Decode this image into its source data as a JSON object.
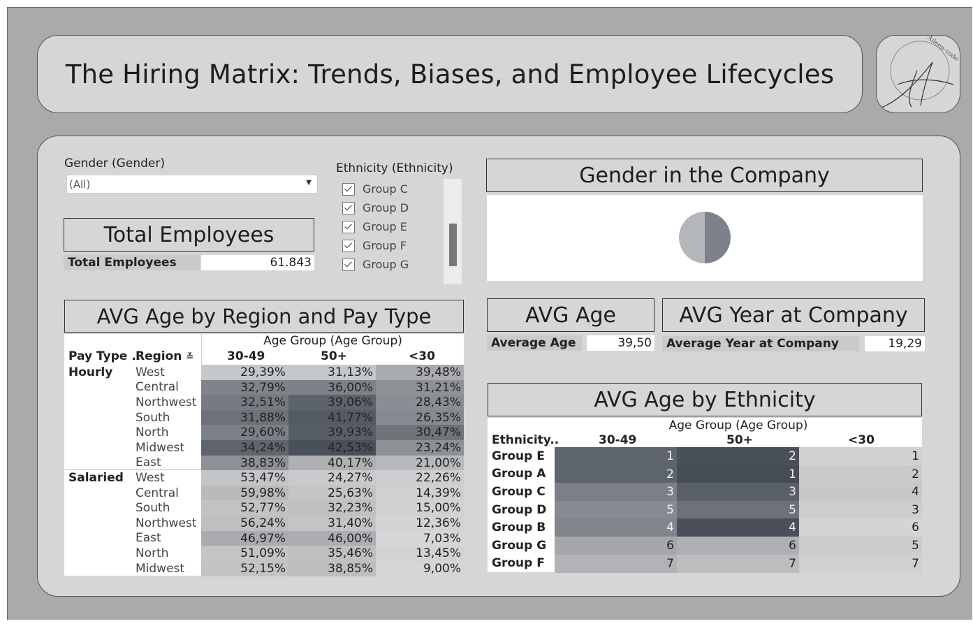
{
  "title": "The Hiring Matrix: Trends, Biases, and Employee Lifecycles",
  "logo": {
    "text": "Aileen-code",
    "initial": "A"
  },
  "filters": {
    "gender": {
      "title": "Gender (Gender)",
      "value": "(All)"
    },
    "ethnicity": {
      "title": "Ethnicity (Ethnicity)",
      "items": [
        "Group C",
        "Group D",
        "Group E",
        "Group F",
        "Group G"
      ],
      "checked": [
        true,
        true,
        true,
        true,
        true
      ]
    }
  },
  "total_employees": {
    "header": "Total Employees",
    "label": "Total Employees",
    "value": "61.843"
  },
  "gender_chart": {
    "header": "Gender in the Company",
    "colors": [
      "#b3b7bb",
      "#7c818c"
    ],
    "slices": [
      0.5,
      0.5
    ]
  },
  "avg_age": {
    "header": "AVG Age",
    "label": "Average Age",
    "value": "39,50"
  },
  "avg_year": {
    "header": "AVG Year at Company",
    "label": "Average Year at Company",
    "value": "19,29"
  },
  "region_table": {
    "header": "AVG Age by Region and Pay Type",
    "group_header": "Age Group (Age Group)",
    "col_pay": "Pay Type ..",
    "col_region": "Region",
    "columns": [
      "30-49",
      "50+",
      "<30"
    ],
    "groups": [
      {
        "pay_type": "Hourly",
        "rows": [
          {
            "region": "West",
            "values": [
              "29,39%",
              "31,13%",
              "39,48%"
            ],
            "shades": [
              "#c6c7c9",
              "#c6c7c9",
              "#a9abae"
            ]
          },
          {
            "region": "Central",
            "values": [
              "32,79%",
              "36,00%",
              "31,21%"
            ],
            "shades": [
              "#7f848a",
              "#7d8288",
              "#8e9297"
            ]
          },
          {
            "region": "Northwest",
            "values": [
              "32,51%",
              "39,06%",
              "28,43%"
            ],
            "shades": [
              "#767b82",
              "#5d636c",
              "#8a8e94"
            ]
          },
          {
            "region": "South",
            "values": [
              "31,88%",
              "41,77%",
              "26,35%"
            ],
            "shades": [
              "#6d7279",
              "#545a63",
              "#868a90"
            ]
          },
          {
            "region": "North",
            "values": [
              "29,60%",
              "39,93%",
              "30,47%"
            ],
            "shades": [
              "#7b8087",
              "#585e67",
              "#6f747b"
            ]
          },
          {
            "region": "Midwest",
            "values": [
              "34,24%",
              "42,53%",
              "23,24%"
            ],
            "shades": [
              "#5f656d",
              "#4a505a",
              "#8d9196"
            ]
          },
          {
            "region": "East",
            "values": [
              "38,83%",
              "40,17%",
              "21,00%"
            ],
            "shades": [
              "#8d9196",
              "#aeb0b3",
              "#b7b9bc"
            ]
          }
        ]
      },
      {
        "pay_type": "Salaried",
        "rows": [
          {
            "region": "West",
            "values": [
              "53,47%",
              "24,27%",
              "22,26%"
            ],
            "shades": [
              "#c4c5c7",
              "#c9cacb",
              "#cdcecf"
            ]
          },
          {
            "region": "Central",
            "values": [
              "59,98%",
              "25,63%",
              "14,39%"
            ],
            "shades": [
              "#b8babc",
              "#c4c5c7",
              "#cfd0d1"
            ]
          },
          {
            "region": "South",
            "values": [
              "52,77%",
              "32,23%",
              "15,00%"
            ],
            "shades": [
              "#c2c3c5",
              "#c0c1c3",
              "#d0d1d2"
            ]
          },
          {
            "region": "Northwest",
            "values": [
              "56,24%",
              "31,40%",
              "12,36%"
            ],
            "shades": [
              "#bdbfc1",
              "#c3c4c6",
              "#d2d3d4"
            ]
          },
          {
            "region": "East",
            "values": [
              "46,97%",
              "46,00%",
              "7,03%"
            ],
            "shades": [
              "#a9abae",
              "#acaeb1",
              "#d5d6d7"
            ]
          },
          {
            "region": "North",
            "values": [
              "51,09%",
              "35,46%",
              "13,45%"
            ],
            "shades": [
              "#c3c4c6",
              "#bfc0c2",
              "#d1d2d3"
            ]
          },
          {
            "region": "Midwest",
            "values": [
              "52,15%",
              "38,85%",
              "9,00%"
            ],
            "shades": [
              "#c2c3c5",
              "#bcbec0",
              "#d4d5d6"
            ]
          }
        ]
      }
    ]
  },
  "ethnicity_table": {
    "header": "AVG Age by Ethnicity",
    "group_header": "Age Group (Age Group)",
    "col_eth": "Ethnicity..",
    "columns": [
      "30-49",
      "50+",
      "<30"
    ],
    "rows": [
      {
        "name": "Group E",
        "values": [
          "1",
          "2",
          "1"
        ],
        "shades": [
          "#5e646d",
          "#4a505a",
          "#d0d1d2"
        ]
      },
      {
        "name": "Group A",
        "values": [
          "2",
          "1",
          "2"
        ],
        "shades": [
          "#5e646d",
          "#474d57",
          "#c9cacb"
        ]
      },
      {
        "name": "Group C",
        "values": [
          "3",
          "3",
          "4"
        ],
        "shades": [
          "#7b8087",
          "#5a6069",
          "#c7c8ca"
        ]
      },
      {
        "name": "Group D",
        "values": [
          "5",
          "5",
          "3"
        ],
        "shades": [
          "#878b91",
          "#6d727a",
          "#cdcecf"
        ]
      },
      {
        "name": "Group B",
        "values": [
          "4",
          "4",
          "6"
        ],
        "shades": [
          "#80858b",
          "#4a505a",
          "#d3d4d5"
        ]
      },
      {
        "name": "Group G",
        "values": [
          "6",
          "6",
          "5"
        ],
        "shades": [
          "#a5a7ab",
          "#aeb0b3",
          "#cbcccd"
        ]
      },
      {
        "name": "Group F",
        "values": [
          "7",
          "7",
          "7"
        ],
        "shades": [
          "#b1b3b6",
          "#bbbdbf",
          "#cfd0d1"
        ]
      }
    ]
  }
}
